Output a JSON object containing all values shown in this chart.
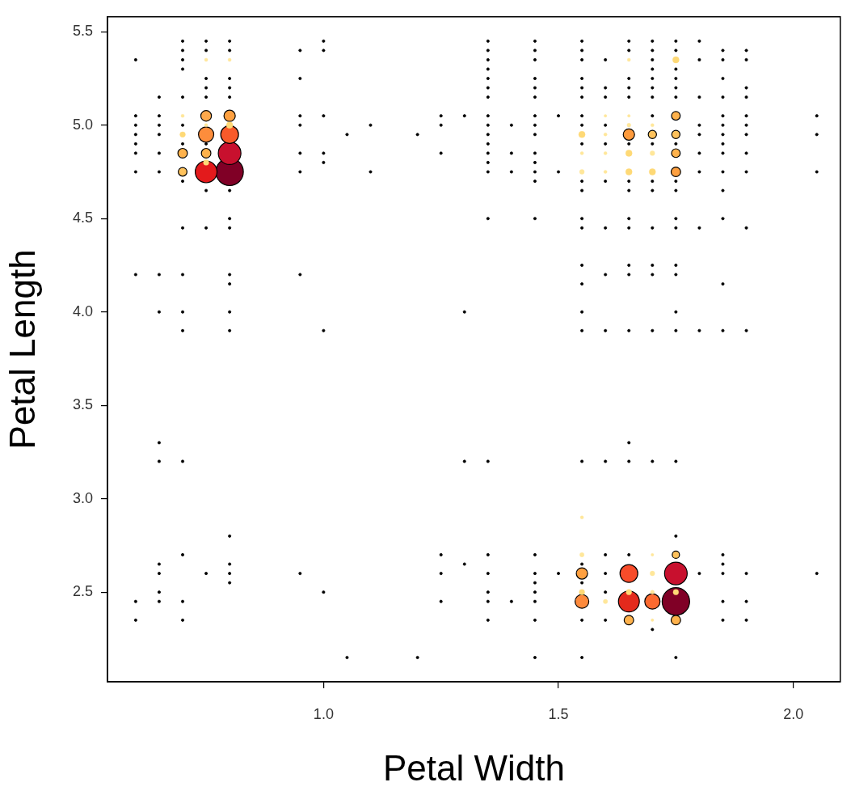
{
  "chart_data": {
    "type": "bubble",
    "xlabel": "Petal Width",
    "ylabel": "Petal Length",
    "xlim": [
      0.54,
      2.1
    ],
    "ylim": [
      2.02,
      5.58
    ],
    "xticks": [
      {
        "value": 1,
        "label": "1.0"
      },
      1.5,
      {
        "value": 2,
        "label": "2.0"
      }
    ],
    "yticks": [
      2.5,
      {
        "value": 3,
        "label": "3.0"
      },
      3.5,
      {
        "value": 4,
        "label": "4.0"
      },
      4.5,
      {
        "value": 5,
        "label": "5.0"
      },
      5.5
    ],
    "grid": false,
    "legend": false,
    "marker": "circle",
    "series": [
      {
        "type": "scatter",
        "color": "#000000",
        "x": [
          0.6,
          0.6,
          0.6,
          0.6,
          0.6,
          0.6,
          0.6,
          0.6,
          0.6,
          0.6,
          0.65,
          0.65,
          0.65,
          0.65,
          0.65,
          0.65,
          0.65,
          0.65,
          0.65,
          0.65,
          0.65,
          0.65,
          0.65,
          0.65,
          0.7,
          0.7,
          0.7,
          0.7,
          0.7,
          0.7,
          0.7,
          0.7,
          0.7,
          0.7,
          0.7,
          0.7,
          0.7,
          0.7,
          0.7,
          0.7,
          0.75,
          0.75,
          0.75,
          0.75,
          0.75,
          0.75,
          0.75,
          0.75,
          0.75,
          0.8,
          0.8,
          0.8,
          0.8,
          0.8,
          0.8,
          0.8,
          0.8,
          0.8,
          0.8,
          0.8,
          0.8,
          0.8,
          0.8,
          0.8,
          0.8,
          0.95,
          0.95,
          0.95,
          0.95,
          0.95,
          0.95,
          0.95,
          0.95,
          1.0,
          1.0,
          1.0,
          1.0,
          1.0,
          1.0,
          1.0,
          1.05,
          1.05,
          1.1,
          1.1,
          1.2,
          1.2,
          1.25,
          1.25,
          1.25,
          1.25,
          1.25,
          1.25,
          1.3,
          1.3,
          1.3,
          1.3,
          1.35,
          1.35,
          1.35,
          1.35,
          1.35,
          1.35,
          1.35,
          1.35,
          1.35,
          1.35,
          1.35,
          1.35,
          1.35,
          1.35,
          1.35,
          1.35,
          1.35,
          1.35,
          1.35,
          1.35,
          1.35,
          1.4,
          1.4,
          1.4,
          1.4,
          1.45,
          1.45,
          1.45,
          1.45,
          1.45,
          1.45,
          1.45,
          1.45,
          1.45,
          1.45,
          1.45,
          1.45,
          1.45,
          1.45,
          1.45,
          1.45,
          1.45,
          1.45,
          1.45,
          1.45,
          1.45,
          1.5,
          1.5,
          1.5,
          1.55,
          1.55,
          1.55,
          1.55,
          1.55,
          1.55,
          1.55,
          1.55,
          1.55,
          1.55,
          1.55,
          1.55,
          1.55,
          1.55,
          1.55,
          1.55,
          1.55,
          1.55,
          1.55,
          1.55,
          1.55,
          1.55,
          1.6,
          1.6,
          1.6,
          1.6,
          1.6,
          1.6,
          1.6,
          1.6,
          1.6,
          1.6,
          1.6,
          1.6,
          1.6,
          1.6,
          1.65,
          1.65,
          1.65,
          1.65,
          1.65,
          1.65,
          1.65,
          1.65,
          1.65,
          1.65,
          1.65,
          1.65,
          1.65,
          1.65,
          1.65,
          1.65,
          1.7,
          1.7,
          1.7,
          1.7,
          1.7,
          1.7,
          1.7,
          1.7,
          1.7,
          1.7,
          1.7,
          1.7,
          1.7,
          1.7,
          1.7,
          1.7,
          1.7,
          1.75,
          1.75,
          1.75,
          1.75,
          1.75,
          1.75,
          1.75,
          1.75,
          1.75,
          1.75,
          1.75,
          1.75,
          1.75,
          1.75,
          1.75,
          1.75,
          1.75,
          1.75,
          1.8,
          1.8,
          1.8,
          1.8,
          1.8,
          1.8,
          1.8,
          1.8,
          1.8,
          1.8,
          1.85,
          1.85,
          1.85,
          1.85,
          1.85,
          1.85,
          1.85,
          1.85,
          1.85,
          1.85,
          1.85,
          1.85,
          1.85,
          1.85,
          1.85,
          1.85,
          1.85,
          1.85,
          1.85,
          1.9,
          1.9,
          1.9,
          1.9,
          1.9,
          1.9,
          1.9,
          1.9,
          1.9,
          1.9,
          1.9,
          1.9,
          1.9,
          1.9,
          2.05,
          2.05,
          2.05,
          2.05
        ],
        "values": [
          5.35,
          5.05,
          5.0,
          4.95,
          4.9,
          4.85,
          4.75,
          4.2,
          2.45,
          2.35,
          5.15,
          5.05,
          5.0,
          4.95,
          4.85,
          4.75,
          4.2,
          4.0,
          3.3,
          3.2,
          2.65,
          2.6,
          2.5,
          2.45,
          5.45,
          5.4,
          5.35,
          5.3,
          5.15,
          5.0,
          4.9,
          4.7,
          4.45,
          4.2,
          4.0,
          3.9,
          3.2,
          2.7,
          2.45,
          2.35,
          5.45,
          5.4,
          5.25,
          5.2,
          5.15,
          4.9,
          4.65,
          4.45,
          2.6,
          5.45,
          5.4,
          5.25,
          5.2,
          5.15,
          4.65,
          4.5,
          4.45,
          4.2,
          4.15,
          4.0,
          3.9,
          2.8,
          2.65,
          2.6,
          2.55,
          5.4,
          5.25,
          5.05,
          5.0,
          4.85,
          4.75,
          4.2,
          2.6,
          5.45,
          5.4,
          5.05,
          4.85,
          4.8,
          3.9,
          2.5,
          4.95,
          2.15,
          5.0,
          4.75,
          4.95,
          2.15,
          5.05,
          5.0,
          4.85,
          2.7,
          2.6,
          2.45,
          5.05,
          4.0,
          3.2,
          2.65,
          5.45,
          5.4,
          5.35,
          5.3,
          5.25,
          5.2,
          5.15,
          5.05,
          5.0,
          4.95,
          4.9,
          4.85,
          4.8,
          4.75,
          4.5,
          3.2,
          2.7,
          2.6,
          2.5,
          2.45,
          2.35,
          5.0,
          4.85,
          4.75,
          2.45,
          5.45,
          5.4,
          5.35,
          5.25,
          5.2,
          5.15,
          5.05,
          5.0,
          4.95,
          4.85,
          4.8,
          4.75,
          4.7,
          4.5,
          2.7,
          2.6,
          2.55,
          2.5,
          2.45,
          2.35,
          2.15,
          5.05,
          4.75,
          2.6,
          5.45,
          5.4,
          5.35,
          5.25,
          5.2,
          5.15,
          5.05,
          5.0,
          4.9,
          4.7,
          4.65,
          4.5,
          4.45,
          4.25,
          4.15,
          4.0,
          3.9,
          3.2,
          2.65,
          2.55,
          2.35,
          2.15,
          5.35,
          5.2,
          5.15,
          5.0,
          4.9,
          4.7,
          4.45,
          4.2,
          3.9,
          3.2,
          2.7,
          2.6,
          2.5,
          2.35,
          5.45,
          5.4,
          5.25,
          5.2,
          5.15,
          4.9,
          4.7,
          4.65,
          4.5,
          4.45,
          4.25,
          4.2,
          3.9,
          3.3,
          3.2,
          2.7,
          5.45,
          5.4,
          5.35,
          5.3,
          5.25,
          5.2,
          5.15,
          5.05,
          4.9,
          4.7,
          4.65,
          4.45,
          4.25,
          4.2,
          3.9,
          3.2,
          2.3,
          5.45,
          5.4,
          5.3,
          5.25,
          5.2,
          5.15,
          4.9,
          4.7,
          4.65,
          4.5,
          4.45,
          4.25,
          4.2,
          4.0,
          3.9,
          3.2,
          2.8,
          2.15,
          5.45,
          5.35,
          5.15,
          5.0,
          4.95,
          4.85,
          4.75,
          4.45,
          3.9,
          2.6,
          5.4,
          5.35,
          5.25,
          5.15,
          5.05,
          5.0,
          4.95,
          4.9,
          4.85,
          4.75,
          4.65,
          4.5,
          4.15,
          3.9,
          2.7,
          2.65,
          2.6,
          2.45,
          2.35,
          5.4,
          5.35,
          5.2,
          5.15,
          5.05,
          5.0,
          4.95,
          4.85,
          4.75,
          4.45,
          3.9,
          2.6,
          2.45,
          2.35,
          5.05,
          4.95,
          4.75,
          2.6
        ]
      },
      {
        "type": "bubble",
        "x": [
          0.8,
          0.8,
          0.75,
          0.8,
          0.75,
          0.8,
          0.75,
          0.7,
          0.75,
          0.7,
          0.8,
          0.7,
          0.75,
          0.7,
          0.75,
          0.75,
          0.8,
          1.75,
          1.75,
          1.65,
          1.65,
          1.7,
          1.55,
          1.55,
          1.65,
          1.75,
          1.75,
          1.55,
          1.65,
          1.75,
          1.7,
          1.55,
          1.6,
          1.7,
          1.55,
          1.7,
          1.7,
          1.65,
          1.75,
          1.75,
          1.75,
          1.75,
          1.7,
          1.75,
          1.55,
          1.65,
          1.65,
          1.7,
          1.7,
          1.55,
          1.65,
          1.7,
          1.6,
          1.6,
          1.6,
          1.55,
          1.65,
          1.6,
          1.65
        ],
        "values": [
          4.75,
          4.85,
          4.75,
          4.95,
          4.95,
          5.05,
          5.05,
          4.85,
          4.85,
          4.75,
          5.0,
          4.95,
          4.8,
          5.05,
          5.0,
          5.35,
          5.35,
          2.45,
          2.6,
          2.45,
          2.6,
          2.45,
          2.45,
          2.6,
          2.35,
          2.35,
          2.7,
          2.5,
          2.5,
          2.5,
          2.6,
          2.7,
          2.45,
          2.5,
          2.9,
          2.7,
          2.35,
          4.95,
          4.75,
          5.05,
          4.85,
          4.95,
          4.95,
          5.35,
          4.95,
          4.85,
          4.75,
          4.75,
          4.85,
          4.75,
          5.0,
          5.0,
          4.95,
          4.85,
          4.75,
          4.85,
          5.35,
          5.05,
          5.05
        ],
        "sizes": [
          1,
          0.68,
          0.63,
          0.42,
          0.31,
          0.17,
          0.15,
          0.12,
          0.12,
          0.1,
          0.055,
          0.04,
          0.04,
          0.014,
          0.014,
          0.014,
          0.014,
          1,
          0.68,
          0.58,
          0.42,
          0.31,
          0.25,
          0.17,
          0.12,
          0.12,
          0.07,
          0.04,
          0.04,
          0.04,
          0.03,
          0.025,
          0.025,
          0.02,
          0.014,
          0.01,
          0.01,
          0.17,
          0.12,
          0.1,
          0.1,
          0.09,
          0.09,
          0.055,
          0.055,
          0.055,
          0.055,
          0.055,
          0.03,
          0.03,
          0.02,
          0.014,
          0.014,
          0.014,
          0.014,
          0.014,
          0.014,
          0.01,
          0.01
        ],
        "colors": [
          "#800026",
          "#c8102e",
          "#e31a1c",
          "#f85a2a",
          "#fd8d3c",
          "#fea040",
          "#fea94c",
          "#feb24c",
          "#feb24c",
          "#fec25c",
          "#fed976",
          "#fed976",
          "#fed976",
          "#ffe79a",
          "#ffe79a",
          "#ffe79a",
          "#ffe79a",
          "#800026",
          "#c8102e",
          "#e32a1c",
          "#f84c2a",
          "#fc6a30",
          "#fd8a3c",
          "#fea040",
          "#feb24c",
          "#feb24c",
          "#fec25c",
          "#fed976",
          "#fed976",
          "#fed976",
          "#ffe79a",
          "#ffe79a",
          "#ffe79a",
          "#ffe79a",
          "#ffe79a",
          "#ffe79a",
          "#ffe79a",
          "#fd9a3c",
          "#fea040",
          "#feb24c",
          "#feb24c",
          "#fec25c",
          "#fec25c",
          "#fed976",
          "#fed976",
          "#fed976",
          "#fed976",
          "#fed976",
          "#ffe79a",
          "#ffe79a",
          "#ffe79a",
          "#ffe79a",
          "#ffe79a",
          "#ffe79a",
          "#ffe79a",
          "#ffe79a",
          "#ffe79a",
          "#ffe79a",
          "#ffe79a"
        ]
      }
    ]
  }
}
